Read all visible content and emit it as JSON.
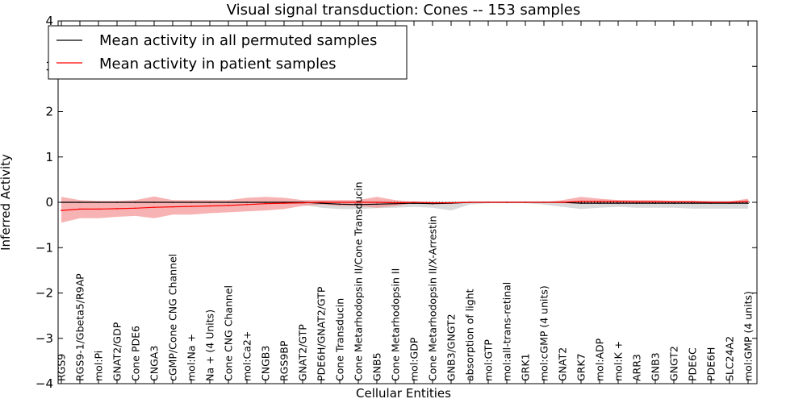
{
  "chart_data": {
    "type": "line",
    "title": "Visual signal transduction: Cones -- 153 samples",
    "xlabel": "Cellular Entities",
    "ylabel": "Inferred Activity",
    "ylim": [
      -4,
      4
    ],
    "yticks": [
      -4,
      -3,
      -2,
      -1,
      0,
      1,
      2,
      3,
      4
    ],
    "ytick_labels": [
      "−4",
      "−3",
      "−2",
      "−1",
      "0",
      "1",
      "2",
      "3",
      "4"
    ],
    "legend_position": "top-left",
    "categories": [
      "RGS9",
      "RGS9-1/Gbeta5/R9AP",
      "mol:Pi",
      "GNAT2/GDP",
      "Cone PDE6",
      "CNGA3",
      "cGMP/Cone CNG Channel",
      "mol:Na +",
      "Na + (4 Units)",
      "Cone CNG Channel",
      "mol:Ca2+",
      "CNGB3",
      "RGS9BP",
      "GNAT2/GTP",
      "PDE6H/GNAT2/GTP",
      "Cone Transducin",
      "Cone Metarhodopsin II/Cone Transducin",
      "GNB5",
      "Cone Metarhodopsin II",
      "mol:GDP",
      "Cone Metarhodopsin II/X-Arrestin",
      "GNB3/GNGT2",
      "absorption of light",
      "mol:GTP",
      "mol:all-trans-retinal",
      "GRK1",
      "mol:cGMP (4 units)",
      "GNAT2",
      "GRK7",
      "mol:ADP",
      "mol:K +",
      "ARR3",
      "GNB3",
      "GNGT2",
      "PDE6C",
      "PDE6H",
      "SLC24A2",
      "mol:GMP (4 units)"
    ],
    "series": [
      {
        "name": "Mean activity in all permuted samples",
        "color": "#000000",
        "band_color": "#bbbbbb",
        "values": [
          0.0,
          0.0,
          0.0,
          0.0,
          0.0,
          0.0,
          0.0,
          0.0,
          0.0,
          0.0,
          0.0,
          0.0,
          0.0,
          0.0,
          -0.02,
          -0.04,
          -0.05,
          -0.04,
          -0.03,
          -0.02,
          -0.03,
          -0.02,
          0.0,
          0.0,
          0.0,
          0.0,
          0.0,
          0.0,
          -0.02,
          -0.02,
          -0.02,
          -0.02,
          -0.02,
          -0.02,
          -0.02,
          -0.02,
          -0.02,
          -0.02
        ],
        "upper": [
          0.02,
          0.02,
          0.02,
          0.02,
          0.02,
          0.02,
          0.02,
          0.02,
          0.02,
          0.02,
          0.02,
          0.02,
          0.02,
          0.02,
          0.03,
          0.03,
          0.03,
          0.03,
          0.03,
          0.02,
          0.02,
          0.02,
          0.02,
          0.02,
          0.02,
          0.02,
          0.02,
          0.02,
          0.03,
          0.03,
          0.03,
          0.03,
          0.03,
          0.03,
          0.03,
          0.03,
          0.03,
          0.03
        ],
        "lower": [
          -0.02,
          -0.02,
          -0.02,
          -0.02,
          -0.02,
          -0.02,
          -0.02,
          -0.02,
          -0.02,
          -0.02,
          -0.02,
          -0.02,
          -0.02,
          -0.05,
          -0.12,
          -0.15,
          -0.15,
          -0.13,
          -0.12,
          -0.1,
          -0.12,
          -0.18,
          -0.05,
          -0.02,
          -0.02,
          -0.02,
          -0.05,
          -0.1,
          -0.15,
          -0.12,
          -0.1,
          -0.12,
          -0.12,
          -0.12,
          -0.14,
          -0.14,
          -0.14,
          -0.14
        ]
      },
      {
        "name": "Mean activity in patient samples",
        "color": "#ff0000",
        "band_color": "#f28b8b",
        "values": [
          -0.18,
          -0.15,
          -0.15,
          -0.14,
          -0.13,
          -0.11,
          -0.1,
          -0.09,
          -0.08,
          -0.07,
          -0.05,
          -0.03,
          -0.02,
          -0.01,
          0.0,
          0.0,
          0.0,
          0.0,
          -0.01,
          0.0,
          -0.01,
          -0.01,
          0.0,
          0.0,
          0.0,
          0.0,
          0.0,
          0.0,
          0.02,
          0.02,
          0.02,
          0.01,
          0.01,
          0.01,
          0.01,
          0.0,
          0.0,
          0.02
        ],
        "upper": [
          0.12,
          0.05,
          0.03,
          0.03,
          0.05,
          0.13,
          0.05,
          0.05,
          0.05,
          0.05,
          0.1,
          0.12,
          0.1,
          0.05,
          0.05,
          0.05,
          0.05,
          0.12,
          0.05,
          0.0,
          0.0,
          0.0,
          0.0,
          0.0,
          0.0,
          0.0,
          0.0,
          0.05,
          0.12,
          0.08,
          0.05,
          0.05,
          0.05,
          0.03,
          0.03,
          0.02,
          0.02,
          0.08
        ],
        "lower": [
          -0.45,
          -0.35,
          -0.35,
          -0.32,
          -0.3,
          -0.35,
          -0.27,
          -0.27,
          -0.24,
          -0.22,
          -0.2,
          -0.18,
          -0.15,
          -0.08,
          -0.05,
          -0.08,
          -0.08,
          -0.12,
          -0.08,
          -0.02,
          -0.02,
          -0.03,
          -0.01,
          0.0,
          0.0,
          0.0,
          0.0,
          -0.02,
          -0.03,
          -0.02,
          -0.02,
          -0.02,
          -0.02,
          -0.02,
          -0.01,
          -0.02,
          -0.02,
          -0.02
        ]
      }
    ]
  }
}
